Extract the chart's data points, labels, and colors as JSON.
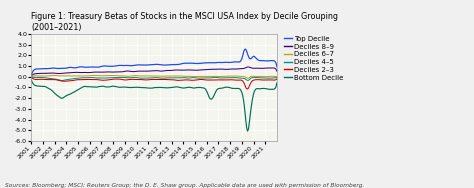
{
  "title_line1": "Figure 1: Treasury Betas of Stocks in the MSCI USA Index by Decile Grouping",
  "title_line2": "(2001–2021)",
  "ylim": [
    -6.0,
    4.0
  ],
  "yticks": [
    -6.0,
    -5.0,
    -4.0,
    -3.0,
    -2.0,
    -1.0,
    0.0,
    1.0,
    2.0,
    3.0,
    4.0
  ],
  "ytick_labels": [
    "-6.0",
    "-5.0",
    "-4.0",
    "-3.0",
    "-2.0",
    "-1.0",
    "0.0",
    "1.0",
    "2.0",
    "3.0",
    "4.0"
  ],
  "source_text": "Sources: Bloomberg; MSCI; Reuters Group; the D. E. Shaw group. Applicable data are used with permission of Bloomberg.",
  "legend_labels": [
    "Top Decile",
    "Deciles 8–9",
    "Deciles 6–7",
    "Deciles 4–5",
    "Deciles 2–3",
    "Bottom Decile"
  ],
  "legend_colors": [
    "#1f4de6",
    "#3b007a",
    "#c8a000",
    "#009090",
    "#cc0000",
    "#007050"
  ],
  "background_color": "#f0f0f0",
  "plot_bg_color": "#f5f5f0",
  "grid_color": "#ffffff",
  "title_fontsize": 5.8,
  "legend_fontsize": 5.0,
  "tick_fontsize": 4.5,
  "source_fontsize": 4.2
}
